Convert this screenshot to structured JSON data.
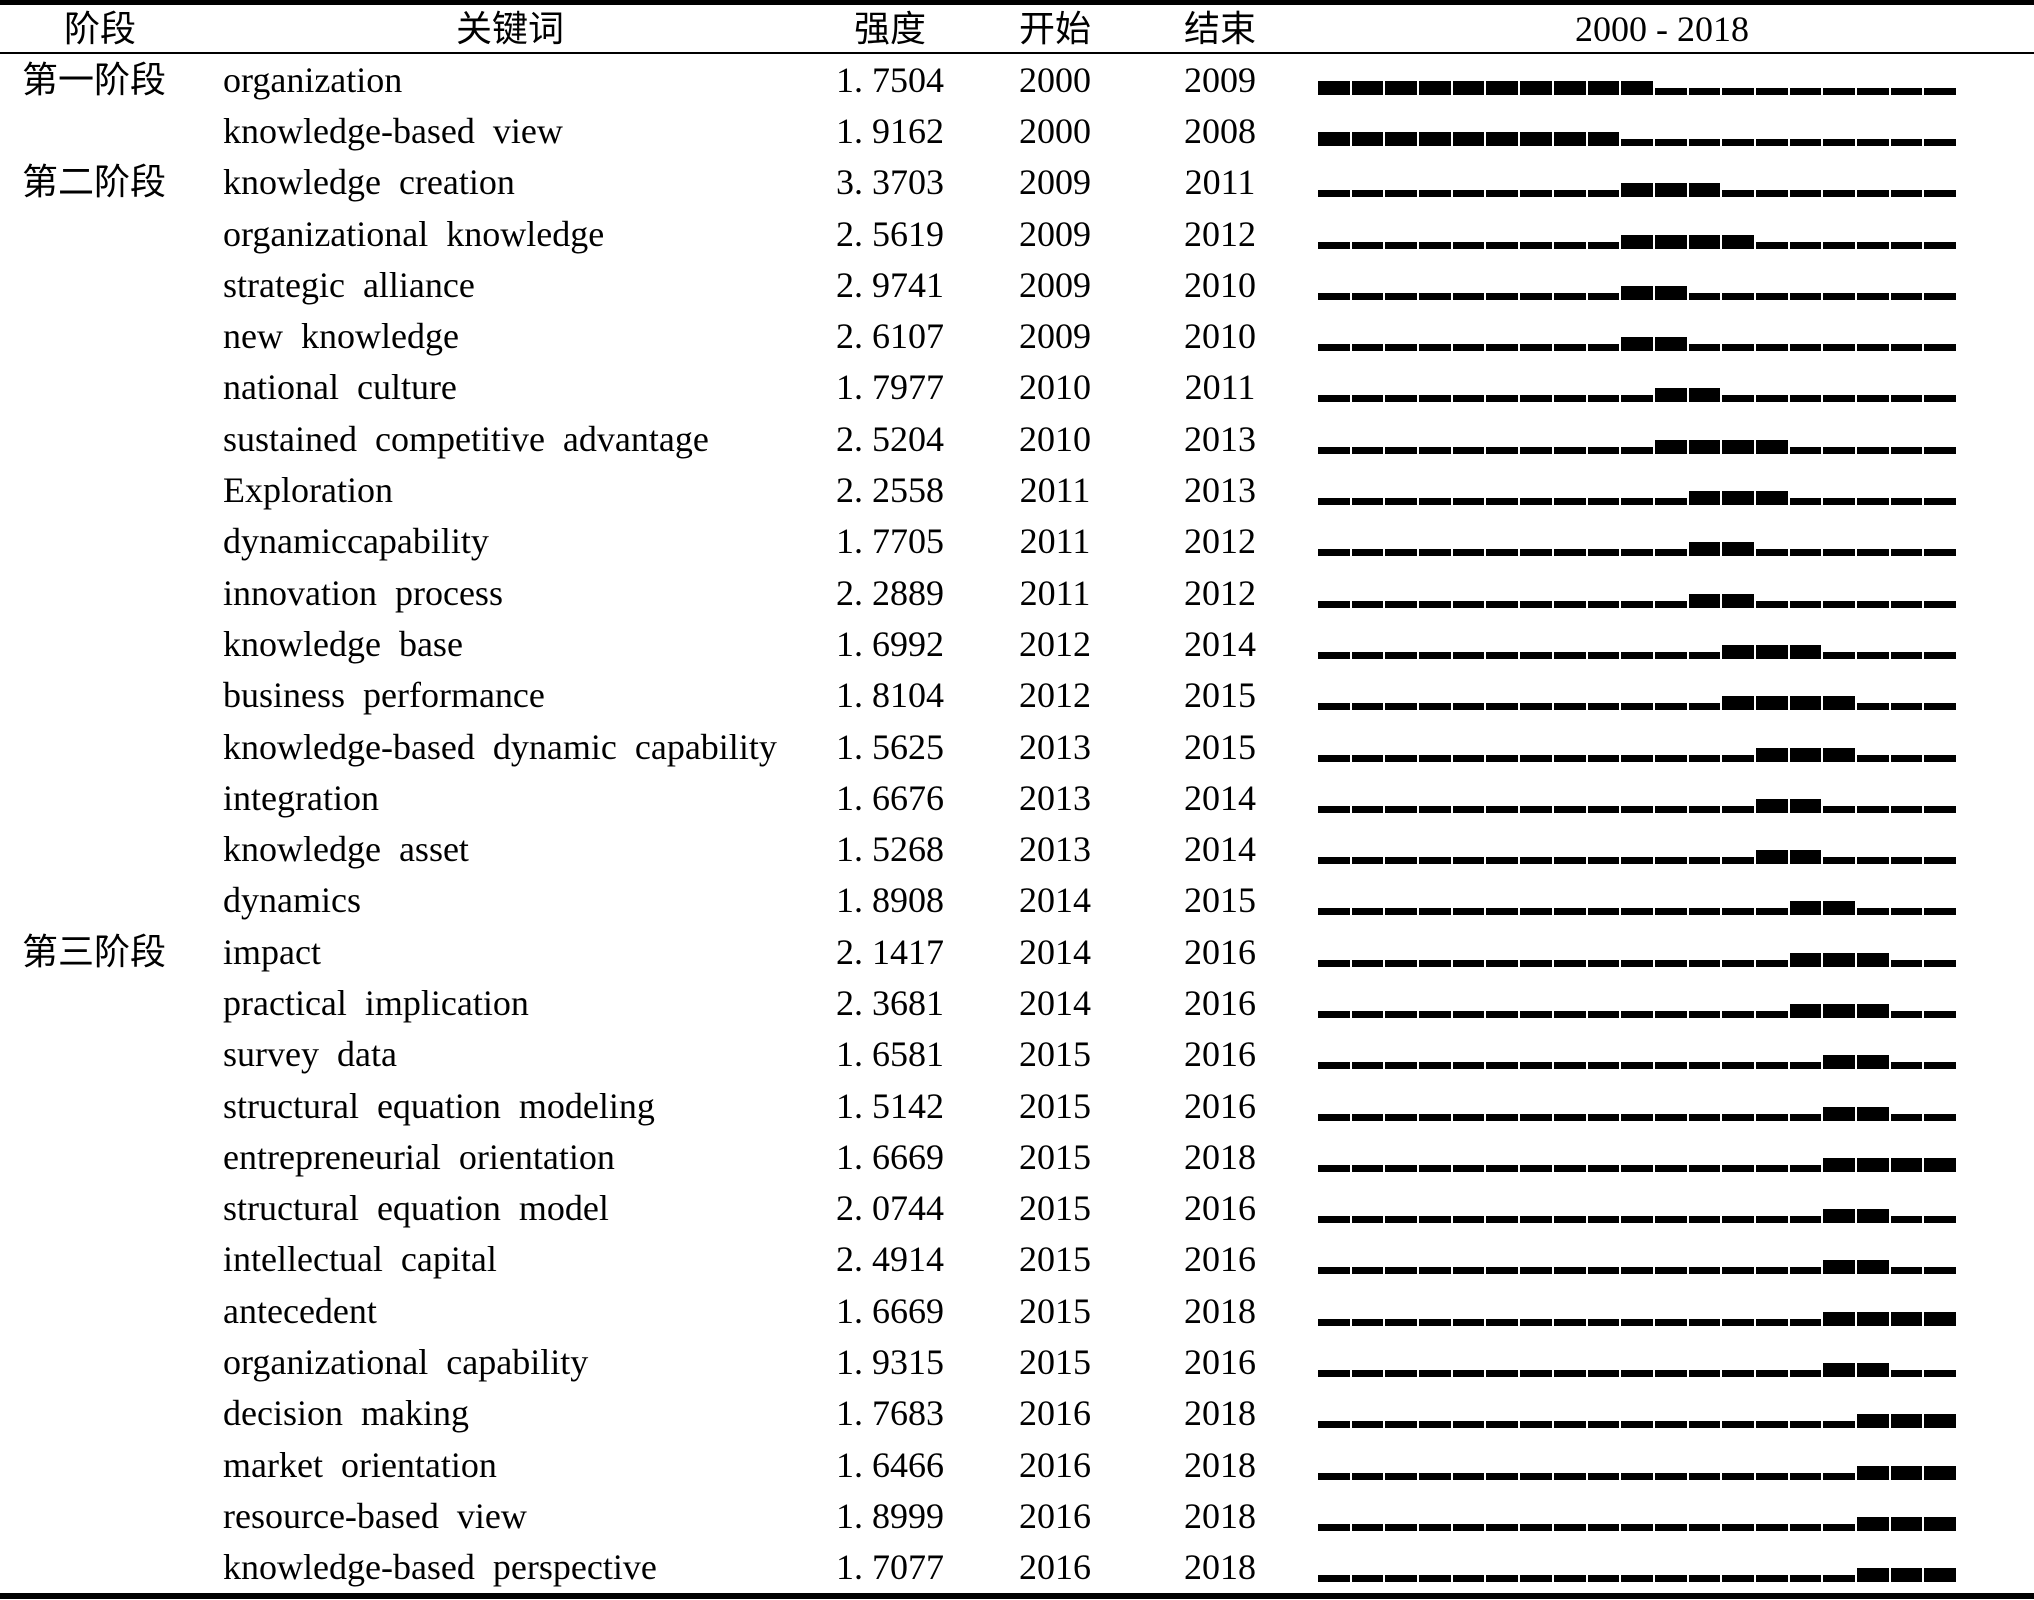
{
  "table": {
    "headers": {
      "phase": "阶段",
      "keyword": "关键词",
      "strength": "强度",
      "start": "开始",
      "end": "结束",
      "timeline": "2000 - 2018"
    },
    "timeline": {
      "year_min": 2000,
      "year_max": 2018
    },
    "rows": [
      {
        "phase": "第一阶段",
        "keyword": "organization",
        "strength": "1. 7504",
        "start": "2000",
        "end": "2009"
      },
      {
        "phase": "",
        "keyword": "knowledge-based view",
        "strength": "1. 9162",
        "start": "2000",
        "end": "2008"
      },
      {
        "phase": "第二阶段",
        "keyword": "knowledge creation",
        "strength": "3. 3703",
        "start": "2009",
        "end": "2011"
      },
      {
        "phase": "",
        "keyword": "organizational knowledge",
        "strength": "2. 5619",
        "start": "2009",
        "end": "2012"
      },
      {
        "phase": "",
        "keyword": "strategic alliance",
        "strength": "2. 9741",
        "start": "2009",
        "end": "2010"
      },
      {
        "phase": "",
        "keyword": "new knowledge",
        "strength": "2. 6107",
        "start": "2009",
        "end": "2010"
      },
      {
        "phase": "",
        "keyword": "national culture",
        "strength": "1. 7977",
        "start": "2010",
        "end": "2011"
      },
      {
        "phase": "",
        "keyword": "sustained competitive advantage",
        "strength": "2. 5204",
        "start": "2010",
        "end": "2013"
      },
      {
        "phase": "",
        "keyword": "Exploration",
        "strength": "2. 2558",
        "start": "2011",
        "end": "2013"
      },
      {
        "phase": "",
        "keyword": "dynamiccapability",
        "strength": "1. 7705",
        "start": "2011",
        "end": "2012"
      },
      {
        "phase": "",
        "keyword": "innovation process",
        "strength": "2. 2889",
        "start": "2011",
        "end": "2012"
      },
      {
        "phase": "",
        "keyword": "knowledge base",
        "strength": "1. 6992",
        "start": "2012",
        "end": "2014"
      },
      {
        "phase": "",
        "keyword": "business performance",
        "strength": "1. 8104",
        "start": "2012",
        "end": "2015"
      },
      {
        "phase": "",
        "keyword": "knowledge-based dynamic capability",
        "strength": "1. 5625",
        "start": "2013",
        "end": "2015"
      },
      {
        "phase": "",
        "keyword": "integration",
        "strength": "1. 6676",
        "start": "2013",
        "end": "2014"
      },
      {
        "phase": "",
        "keyword": "knowledge asset",
        "strength": "1. 5268",
        "start": "2013",
        "end": "2014"
      },
      {
        "phase": "",
        "keyword": "dynamics",
        "strength": "1. 8908",
        "start": "2014",
        "end": "2015"
      },
      {
        "phase": "第三阶段",
        "keyword": "impact",
        "strength": "2. 1417",
        "start": "2014",
        "end": "2016"
      },
      {
        "phase": "",
        "keyword": "practical implication",
        "strength": "2. 3681",
        "start": "2014",
        "end": "2016"
      },
      {
        "phase": "",
        "keyword": "survey data",
        "strength": "1. 6581",
        "start": "2015",
        "end": "2016"
      },
      {
        "phase": "",
        "keyword": "structural equation modeling",
        "strength": "1. 5142",
        "start": "2015",
        "end": "2016"
      },
      {
        "phase": "",
        "keyword": "entrepreneurial orientation",
        "strength": "1. 6669",
        "start": "2015",
        "end": "2018"
      },
      {
        "phase": "",
        "keyword": "structural equation model",
        "strength": "2. 0744",
        "start": "2015",
        "end": "2016"
      },
      {
        "phase": "",
        "keyword": "intellectual capital",
        "strength": "2. 4914",
        "start": "2015",
        "end": "2016"
      },
      {
        "phase": "",
        "keyword": "antecedent",
        "strength": "1. 6669",
        "start": "2015",
        "end": "2018"
      },
      {
        "phase": "",
        "keyword": "organizational capability",
        "strength": "1. 9315",
        "start": "2015",
        "end": "2016"
      },
      {
        "phase": "",
        "keyword": "decision making",
        "strength": "1. 7683",
        "start": "2016",
        "end": "2018"
      },
      {
        "phase": "",
        "keyword": "market orientation",
        "strength": "1. 6466",
        "start": "2016",
        "end": "2018"
      },
      {
        "phase": "",
        "keyword": "resource-based view",
        "strength": "1. 8999",
        "start": "2016",
        "end": "2018"
      },
      {
        "phase": "",
        "keyword": "knowledge-based perspective",
        "strength": "1. 7077",
        "start": "2016",
        "end": "2018"
      }
    ]
  },
  "colors": {
    "background": "#ffffff",
    "text": "#000000",
    "bar": "#000000",
    "border": "#000000"
  }
}
